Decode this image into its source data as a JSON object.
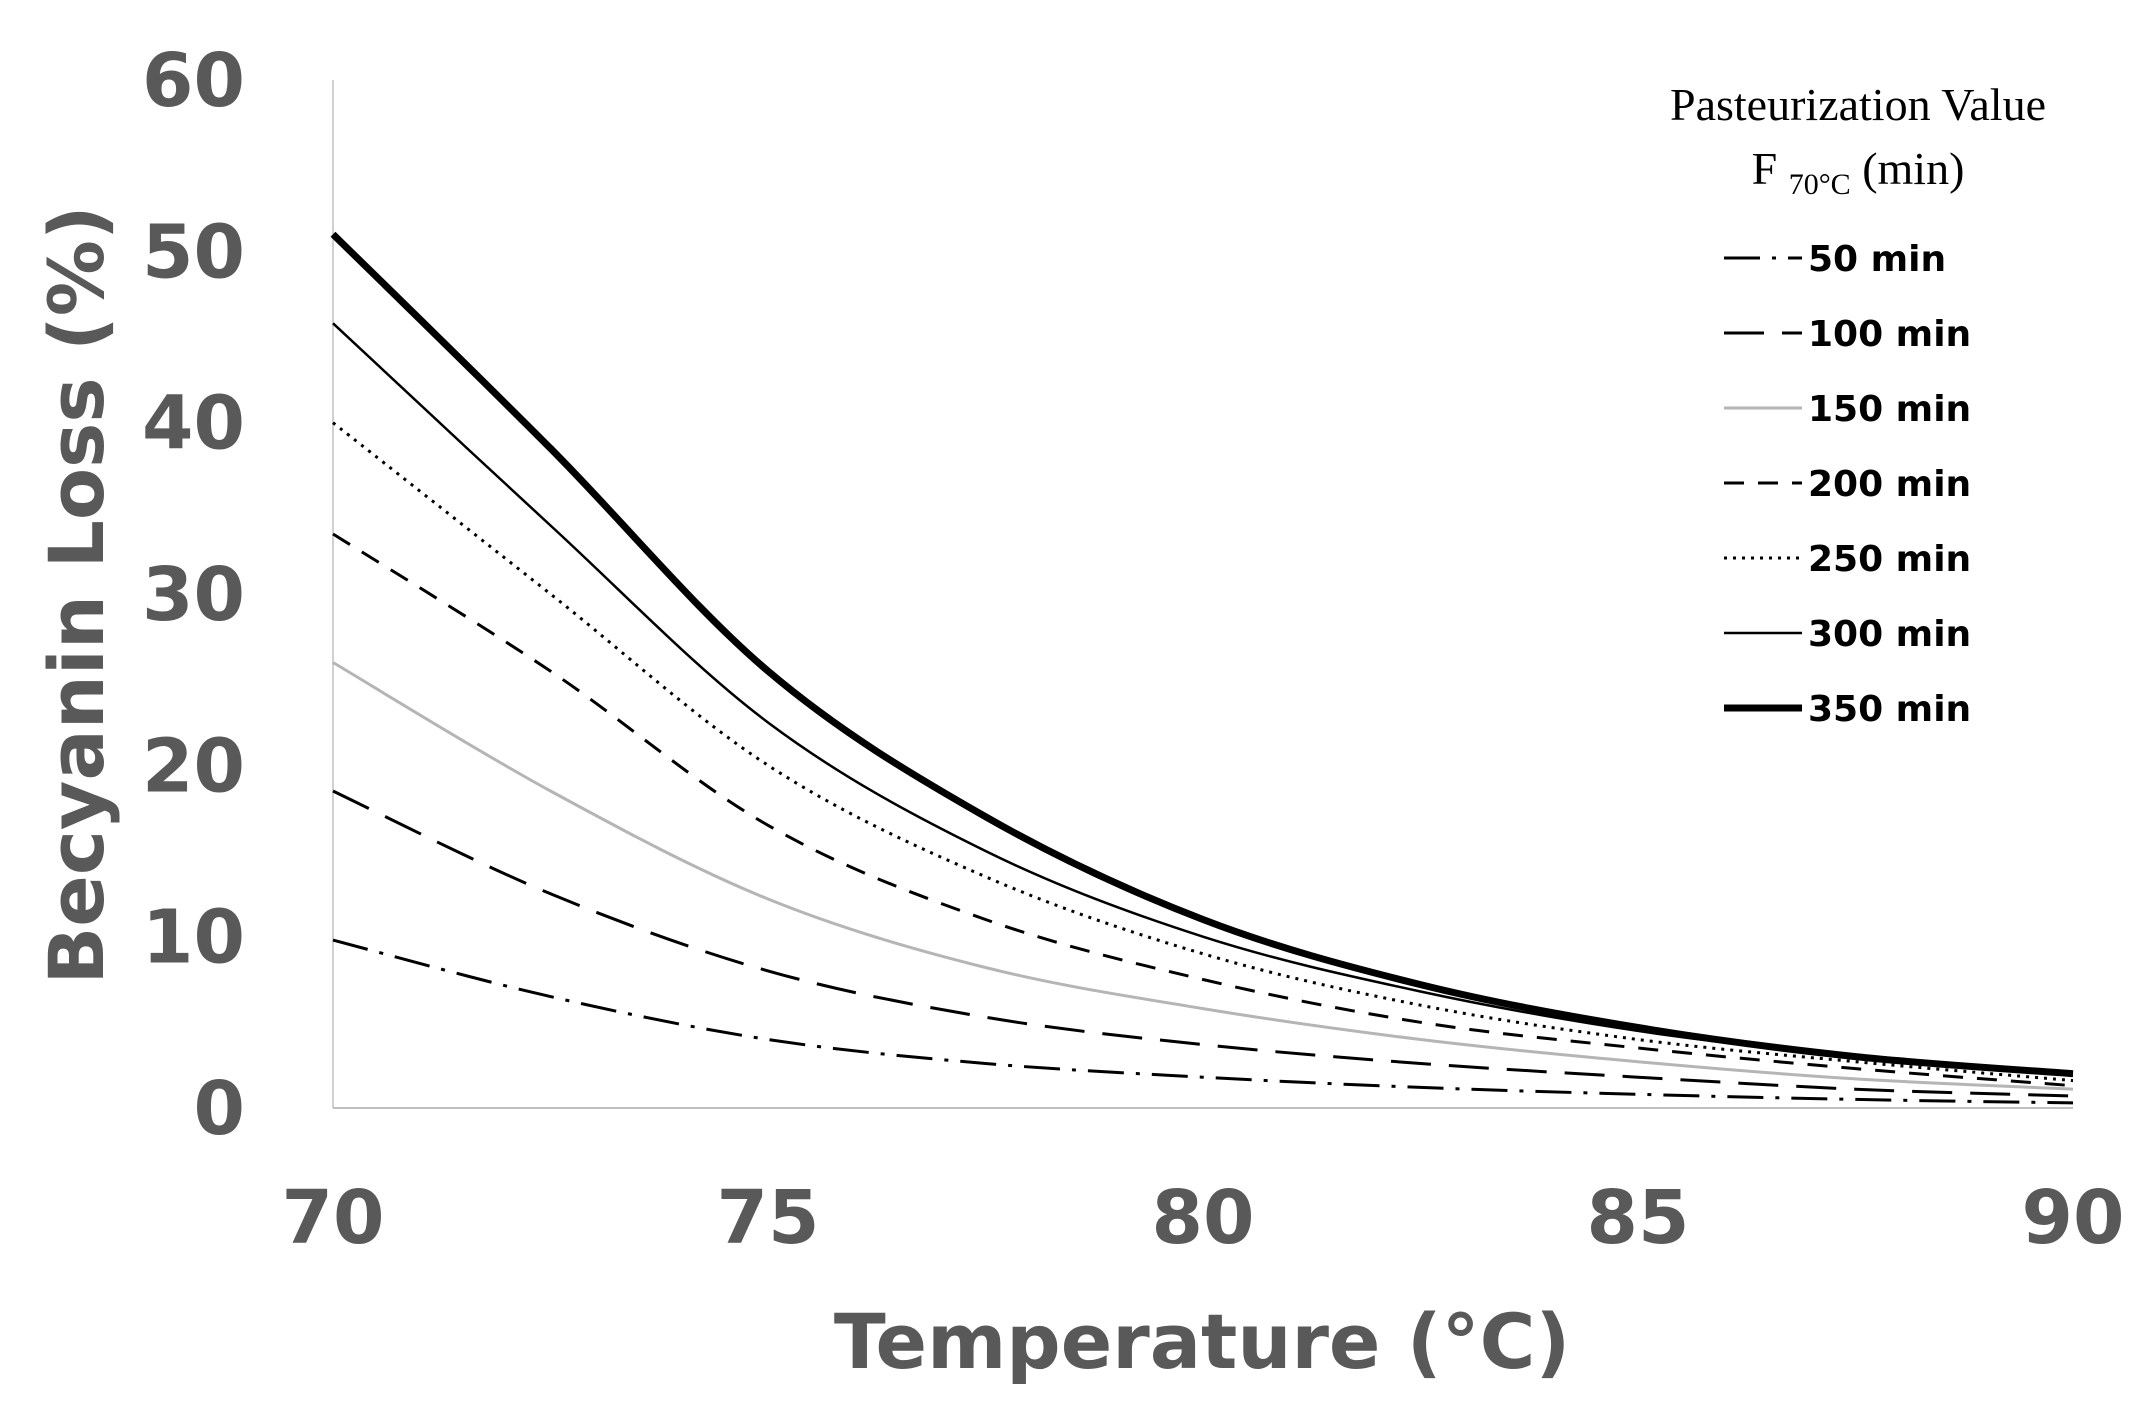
{
  "chart_data": {
    "type": "line",
    "xlabel": "Temperature (°C)",
    "ylabel": "Becyanin Loss (%)",
    "xlim": [
      70,
      90
    ],
    "ylim": [
      0,
      60
    ],
    "x_ticks": [
      "70",
      "75",
      "80",
      "85",
      "90"
    ],
    "y_ticks": [
      "0",
      "10",
      "20",
      "30",
      "40",
      "50",
      "60"
    ],
    "legend": {
      "title_line1": "Pasteurization Value",
      "title_line2_main": "F",
      "title_line2_sub": "70°C",
      "title_line2_suffix": " (min)",
      "position": "top-right"
    },
    "x": [
      70,
      72.5,
      75,
      77.5,
      80,
      82.5,
      85,
      87.5,
      90
    ],
    "series": [
      {
        "name": "50 min",
        "style": "dashdot",
        "values": [
          9.8,
          6.5,
          4.0,
          2.6,
          1.8,
          1.2,
          0.8,
          0.5,
          0.3
        ]
      },
      {
        "name": "100 min",
        "style": "longdash",
        "values": [
          18.5,
          12.5,
          8.0,
          5.3,
          3.7,
          2.6,
          1.8,
          1.1,
          0.7
        ]
      },
      {
        "name": "150 min",
        "style": "solid-gray",
        "values": [
          26.0,
          18.5,
          12.2,
          8.2,
          5.8,
          4.0,
          2.7,
          1.7,
          1.1
        ]
      },
      {
        "name": "200 min",
        "style": "shortdash",
        "values": [
          33.5,
          25.5,
          16.5,
          11.0,
          7.5,
          5.0,
          3.5,
          2.3,
          1.3
        ]
      },
      {
        "name": "250 min",
        "style": "dotted",
        "values": [
          40.0,
          30.0,
          20.0,
          13.5,
          9.0,
          6.0,
          4.0,
          2.7,
          1.6
        ]
      },
      {
        "name": "300 min",
        "style": "solid-thin",
        "values": [
          45.8,
          34.0,
          22.5,
          15.0,
          10.0,
          6.8,
          4.5,
          3.0,
          1.9
        ]
      },
      {
        "name": "350 min",
        "style": "solid-thick",
        "values": [
          51.0,
          38.5,
          25.5,
          17.0,
          11.0,
          7.2,
          4.7,
          3.0,
          2.0
        ]
      }
    ]
  }
}
